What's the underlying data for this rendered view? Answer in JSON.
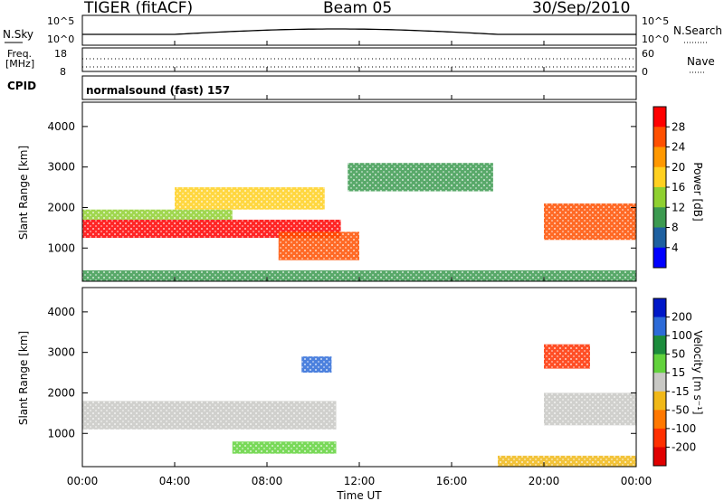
{
  "header": {
    "radar": "TIGER (fitACF)",
    "beam": "Beam 05",
    "date": "30/Sep/2010"
  },
  "strips": {
    "nsky_label": "N.Sky",
    "nsky_ticks": [
      "10^5",
      "10^0"
    ],
    "nsearch_label": "N.Search",
    "nsearch_ticks": [
      "10^5",
      "10^0"
    ],
    "freq_label_1": "Freq.",
    "freq_label_2": "[MHz]",
    "freq_ticks": [
      "18",
      "8"
    ],
    "nave_label": "Nave",
    "nave_ticks": [
      "60",
      "0"
    ],
    "cpid_label": "CPID",
    "cpid_value": "normalsound (fast) 157"
  },
  "axes": {
    "xlabel": "Time UT",
    "xticks": [
      "00:00",
      "04:00",
      "08:00",
      "12:00",
      "16:00",
      "20:00",
      "00:00"
    ],
    "ylabel": "Slant Range [km]",
    "yticks": [
      "4000",
      "3000",
      "2000",
      "1000"
    ]
  },
  "colorbars": {
    "power": {
      "label": "Power [dB]",
      "ticks": [
        "28",
        "24",
        "20",
        "16",
        "12",
        "8",
        "4"
      ],
      "colors": [
        "#ff0000",
        "#ff5000",
        "#ff9800",
        "#ffd020",
        "#8fd030",
        "#3c9a50",
        "#1e60a0",
        "#0000ff"
      ]
    },
    "velocity": {
      "label": "Velocity [m s⁻¹]",
      "ticks": [
        "200",
        "100",
        "50",
        "15",
        "-15",
        "-50",
        "-100",
        "-200"
      ],
      "colors": [
        "#0018c8",
        "#2d6bd8",
        "#1c8c3c",
        "#62d23c",
        "#c8c8c4",
        "#f0b818",
        "#ff7800",
        "#ff3000",
        "#e00000"
      ]
    }
  },
  "chart_data": {
    "type": "heatmap",
    "title": "TIGER (fitACF) Beam 05 30/Sep/2010",
    "xlabel": "Time UT",
    "ylabel": "Slant Range [km]",
    "xlim": [
      "00:00",
      "24:00"
    ],
    "ylim": [
      180,
      4600
    ],
    "yticks": [
      1000,
      2000,
      3000,
      4000
    ],
    "panels": [
      {
        "name": "Power",
        "units": "dB",
        "color_scale": [
          0,
          32
        ],
        "regions": [
          {
            "t_start": 0.0,
            "t_end": 11.2,
            "r_start": 1250,
            "r_end": 1700,
            "value": 28
          },
          {
            "t_start": 0.0,
            "t_end": 6.5,
            "r_start": 1700,
            "r_end": 1950,
            "value": 14
          },
          {
            "t_start": 4.0,
            "t_end": 10.5,
            "r_start": 1950,
            "r_end": 2500,
            "value": 18
          },
          {
            "t_start": 8.5,
            "t_end": 12.0,
            "r_start": 700,
            "r_end": 1400,
            "value": 26
          },
          {
            "t_start": 11.5,
            "t_end": 17.8,
            "r_start": 2400,
            "r_end": 3100,
            "value": 10
          },
          {
            "t_start": 20.0,
            "t_end": 24.0,
            "r_start": 1200,
            "r_end": 2100,
            "value": 27
          },
          {
            "t_start": 0.0,
            "t_end": 24.0,
            "r_start": 180,
            "r_end": 450,
            "value": 8
          }
        ]
      },
      {
        "name": "Velocity",
        "units": "m/s",
        "color_scale": [
          -200,
          200
        ],
        "regions": [
          {
            "t_start": 0.0,
            "t_end": 11.0,
            "r_start": 1100,
            "r_end": 1800,
            "value": 0
          },
          {
            "t_start": 6.5,
            "t_end": 11.0,
            "r_start": 500,
            "r_end": 800,
            "value": 30
          },
          {
            "t_start": 9.5,
            "t_end": 10.8,
            "r_start": 2500,
            "r_end": 2900,
            "value": 150
          },
          {
            "t_start": 20.0,
            "t_end": 22.0,
            "r_start": 2600,
            "r_end": 3200,
            "value": -180
          },
          {
            "t_start": 20.0,
            "t_end": 24.0,
            "r_start": 1200,
            "r_end": 2000,
            "value": 0
          },
          {
            "t_start": 18.0,
            "t_end": 24.0,
            "r_start": 180,
            "r_end": 450,
            "value": -40
          }
        ]
      }
    ]
  }
}
